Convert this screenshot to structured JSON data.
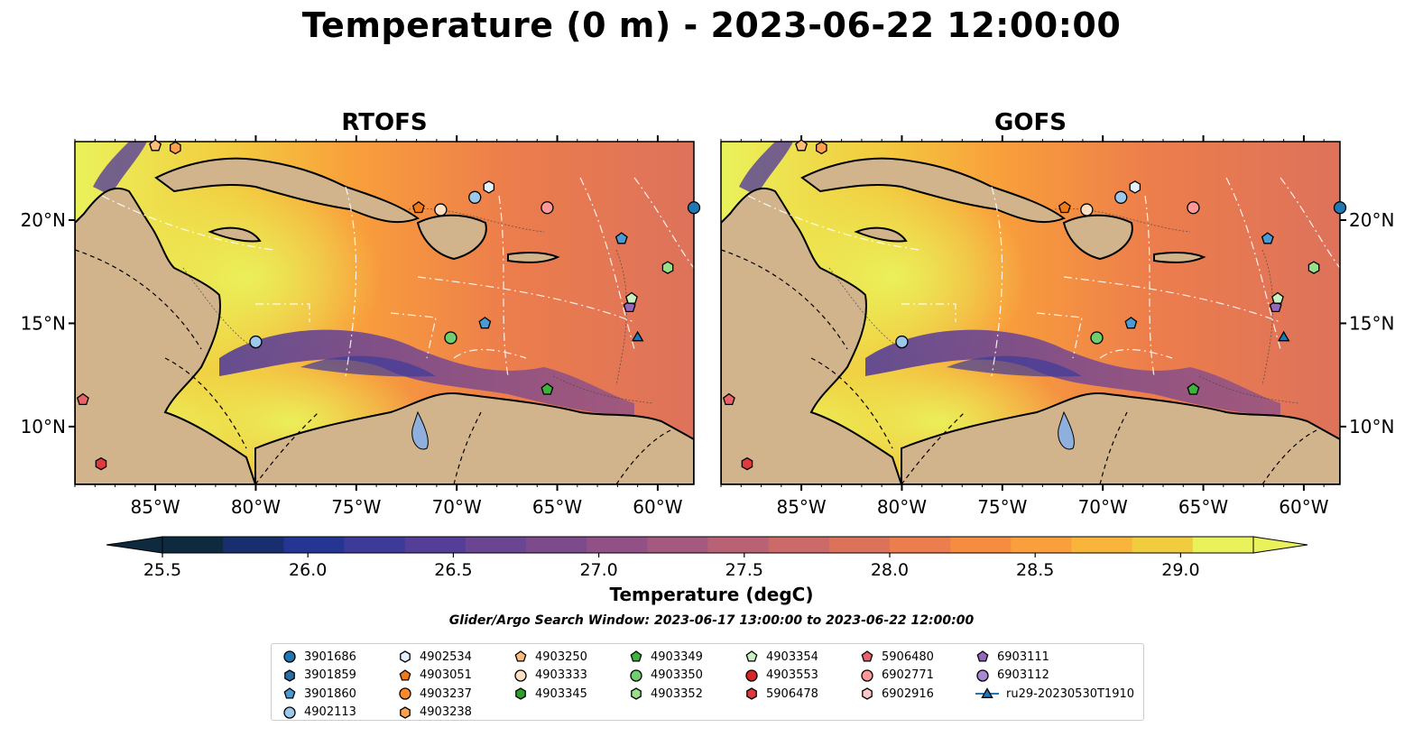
{
  "title": "Temperature (0 m) - 2023-06-22 12:00:00",
  "panels": [
    {
      "title": "RTOFS"
    },
    {
      "title": "GOFS"
    }
  ],
  "axes": {
    "lon_ticks": [
      "85°W",
      "80°W",
      "75°W",
      "70°W",
      "65°W",
      "60°W"
    ],
    "lat_ticks": [
      "20°N",
      "15°N",
      "10°N"
    ],
    "lon_range": [
      -89,
      -58.2
    ],
    "lat_range": [
      7.2,
      23.8
    ]
  },
  "colorbar": {
    "label": "Temperature (degC)",
    "ticks": [
      "25.5",
      "26.0",
      "26.5",
      "27.0",
      "27.5",
      "28.0",
      "28.5",
      "29.0"
    ],
    "range": [
      25.5,
      29.25
    ],
    "colors": [
      "#0d2a3e",
      "#172f6e",
      "#253593",
      "#3d3a9a",
      "#553e98",
      "#6a4592",
      "#7d4b8c",
      "#915186",
      "#a5597e",
      "#b96276",
      "#cc6a69",
      "#dd725b",
      "#ec7d4c",
      "#f68c40",
      "#f99f3b",
      "#f9b53b",
      "#f2cc3f",
      "#eaf25b"
    ]
  },
  "search_window": "Glider/Argo Search Window: 2023-06-17 13:00:00 to 2023-06-22 12:00:00",
  "legend": [
    {
      "label": "3901686",
      "marker": "circle",
      "color": "#1f77b4"
    },
    {
      "label": "3901859",
      "marker": "hexagon",
      "color": "#2a6ea8"
    },
    {
      "label": "3901860",
      "marker": "pentagon",
      "color": "#4a9ad4"
    },
    {
      "label": "4902113",
      "marker": "circle",
      "color": "#9cc8ea"
    },
    {
      "label": "4902534",
      "marker": "hexagon",
      "color": "#e4f0fb"
    },
    {
      "label": "4903051",
      "marker": "pentagon",
      "color": "#f07a1a"
    },
    {
      "label": "4903237",
      "marker": "circle",
      "color": "#ff8a2a"
    },
    {
      "label": "4903238",
      "marker": "hexagon",
      "color": "#ffa050"
    },
    {
      "label": "4903250",
      "marker": "pentagon",
      "color": "#ffbb78"
    },
    {
      "label": "4903333",
      "marker": "circle",
      "color": "#ffe0c2"
    },
    {
      "label": "4903345",
      "marker": "hexagon",
      "color": "#2ca02c"
    },
    {
      "label": "4903349",
      "marker": "pentagon",
      "color": "#3cb33c"
    },
    {
      "label": "4903350",
      "marker": "circle",
      "color": "#6fcf6f"
    },
    {
      "label": "4903352",
      "marker": "hexagon",
      "color": "#98df8a"
    },
    {
      "label": "4903354",
      "marker": "pentagon",
      "color": "#c8f0c0"
    },
    {
      "label": "4903553",
      "marker": "circle",
      "color": "#d62728"
    },
    {
      "label": "5906478",
      "marker": "hexagon",
      "color": "#e03a3c"
    },
    {
      "label": "5906480",
      "marker": "pentagon",
      "color": "#e8626a"
    },
    {
      "label": "6902771",
      "marker": "circle",
      "color": "#ff9896"
    },
    {
      "label": "6902916",
      "marker": "hexagon",
      "color": "#ffc8c8"
    },
    {
      "label": "6903111",
      "marker": "pentagon",
      "color": "#9467bd"
    },
    {
      "label": "6903112",
      "marker": "circle",
      "color": "#a88ad4"
    },
    {
      "label": "ru29-20230530T1910",
      "marker": "triangle-line",
      "color": "#1f77b4"
    }
  ],
  "floats": [
    {
      "id": "3901686",
      "lon": -58.2,
      "lat": 20.6
    },
    {
      "id": "3901860",
      "lon": -61.8,
      "lat": 19.1
    },
    {
      "id": "3901860",
      "lon": -68.6,
      "lat": 15.0
    },
    {
      "id": "4902113",
      "lon": -69.1,
      "lat": 21.1
    },
    {
      "id": "4902113",
      "lon": -80.0,
      "lat": 14.1
    },
    {
      "id": "4902534",
      "lon": -68.4,
      "lat": 21.6
    },
    {
      "id": "4903051",
      "lon": -71.9,
      "lat": 20.6
    },
    {
      "id": "4903333",
      "lon": -70.8,
      "lat": 20.5
    },
    {
      "id": "4903238",
      "lon": -84.0,
      "lat": 23.5
    },
    {
      "id": "4903250",
      "lon": -85.0,
      "lat": 23.6
    },
    {
      "id": "6902771",
      "lon": -65.5,
      "lat": 20.6
    },
    {
      "id": "4903349",
      "lon": -65.5,
      "lat": 11.8
    },
    {
      "id": "4903350",
      "lon": -70.3,
      "lat": 14.3
    },
    {
      "id": "4903352",
      "lon": -59.5,
      "lat": 17.7
    },
    {
      "id": "6903111",
      "lon": -61.4,
      "lat": 15.8
    },
    {
      "id": "4903354",
      "lon": -61.3,
      "lat": 16.2
    },
    {
      "id": "5906480",
      "lon": -88.6,
      "lat": 11.3
    },
    {
      "id": "5906478",
      "lon": -87.7,
      "lat": 8.2
    },
    {
      "id": "ru29-20230530T1910",
      "lon": -61.0,
      "lat": 14.3
    }
  ]
}
